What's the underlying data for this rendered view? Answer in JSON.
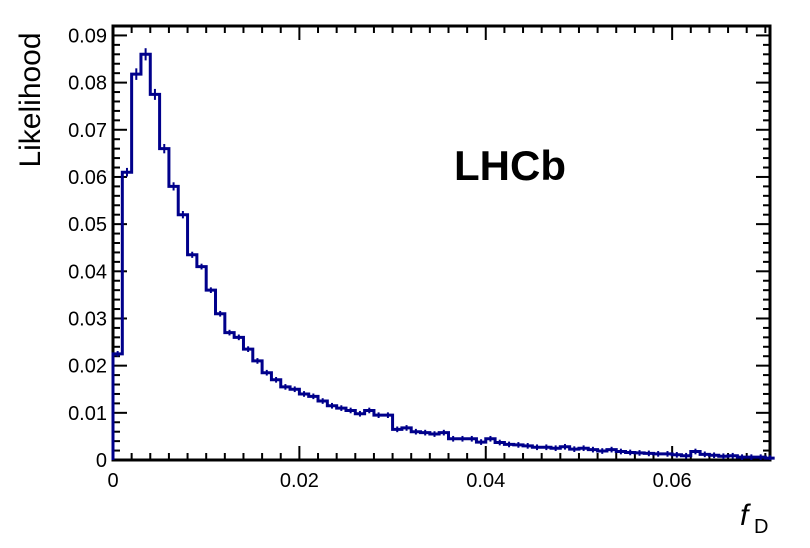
{
  "chart_data": {
    "type": "histogram",
    "ylabel": "Likelihood",
    "xlabel_main": "f",
    "xlabel_sub": "D",
    "annotation": "LHCb",
    "xlim": [
      0,
      0.0705
    ],
    "ylim": [
      0,
      0.092
    ],
    "xticks": [
      0,
      0.02,
      0.04,
      0.06
    ],
    "xtick_labels": [
      "0",
      "0.02",
      "0.04",
      "0.06"
    ],
    "yticks": [
      0,
      0.01,
      0.02,
      0.03,
      0.04,
      0.05,
      0.06,
      0.07,
      0.08,
      0.09
    ],
    "ytick_labels": [
      "0",
      "0.01",
      "0.02",
      "0.03",
      "0.04",
      "0.05",
      "0.06",
      "0.07",
      "0.08",
      "0.09"
    ],
    "bin_width": 0.001,
    "series": [
      {
        "color": "#00008b",
        "bin_start": 0,
        "values": [
          0.0225,
          0.061,
          0.0818,
          0.086,
          0.0775,
          0.066,
          0.058,
          0.052,
          0.0435,
          0.041,
          0.036,
          0.031,
          0.027,
          0.026,
          0.0235,
          0.021,
          0.0185,
          0.017,
          0.0155,
          0.015,
          0.014,
          0.0135,
          0.0125,
          0.0115,
          0.011,
          0.0105,
          0.0098,
          0.0105,
          0.0095,
          0.0095,
          0.0065,
          0.0068,
          0.006,
          0.0058,
          0.0055,
          0.0058,
          0.0045,
          0.0045,
          0.0045,
          0.0038,
          0.0045,
          0.0037,
          0.0033,
          0.0032,
          0.003,
          0.0027,
          0.0027,
          0.0025,
          0.0028,
          0.0023,
          0.0025,
          0.0022,
          0.0019,
          0.0022,
          0.0018,
          0.0016,
          0.0015,
          0.0014,
          0.0013,
          0.0013,
          0.0011,
          0.0009,
          0.0018,
          0.0012,
          0.001,
          0.0008,
          0.0009,
          0.0006,
          0.0006,
          0.0006,
          0.0004
        ]
      }
    ]
  }
}
